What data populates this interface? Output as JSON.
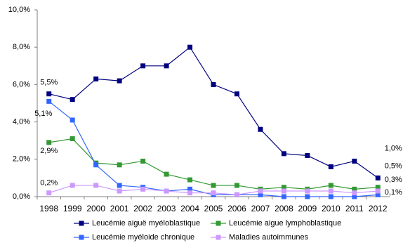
{
  "chart_data": {
    "type": "line",
    "categories": [
      "1998",
      "1999",
      "2000",
      "2001",
      "2002",
      "2003",
      "2004",
      "2005",
      "2006",
      "2007",
      "2008",
      "2009",
      "2010",
      "2011",
      "2012"
    ],
    "ylim": [
      0,
      10
    ],
    "yticks": [
      {
        "value": 0,
        "label": "0,0%"
      },
      {
        "value": 2,
        "label": "2,0%"
      },
      {
        "value": 4,
        "label": "4,0%"
      },
      {
        "value": 6,
        "label": "6,0%"
      },
      {
        "value": 8,
        "label": "8,0%"
      },
      {
        "value": 10,
        "label": "10,0%"
      }
    ],
    "grid": false,
    "legend": "bottom",
    "series": [
      {
        "name": "Leucémie aiguë myéloblastique",
        "color": "#000080",
        "values": [
          5.5,
          5.2,
          6.3,
          6.2,
          7.0,
          7.0,
          8.0,
          6.0,
          5.5,
          3.6,
          2.3,
          2.2,
          1.6,
          1.9,
          1.0
        ],
        "value_labels": [
          "5,5%",
          null,
          null,
          null,
          null,
          null,
          null,
          null,
          null,
          null,
          null,
          null,
          null,
          null,
          "1,0%"
        ]
      },
      {
        "name": "Leucémie aigue lymphoblastique",
        "color": "#339933",
        "values": [
          2.9,
          3.1,
          1.8,
          1.7,
          1.9,
          1.2,
          0.9,
          0.6,
          0.6,
          0.4,
          0.5,
          0.4,
          0.6,
          0.4,
          0.5
        ],
        "value_labels": [
          "2,9%",
          null,
          null,
          null,
          null,
          null,
          null,
          null,
          null,
          null,
          null,
          null,
          null,
          null,
          "0,5%"
        ]
      },
      {
        "name": "Leucémie myéloide chronique",
        "color": "#3366ff",
        "values": [
          5.1,
          4.1,
          1.7,
          0.6,
          0.5,
          0.3,
          0.4,
          0.1,
          0.1,
          0.1,
          0.0,
          0.0,
          0.0,
          0.0,
          0.1
        ],
        "value_labels": [
          "5,1%",
          null,
          null,
          null,
          null,
          null,
          null,
          null,
          null,
          null,
          null,
          null,
          null,
          null,
          "0,1%"
        ]
      },
      {
        "name": "Maladies autoimmunes",
        "color": "#cc99ff",
        "values": [
          0.2,
          0.6,
          0.6,
          0.3,
          0.4,
          0.3,
          0.2,
          0.2,
          0.1,
          0.3,
          0.3,
          0.3,
          0.3,
          0.2,
          0.3
        ],
        "value_labels": [
          "0,2%",
          null,
          null,
          null,
          null,
          null,
          null,
          null,
          null,
          null,
          null,
          null,
          null,
          null,
          "0,3%"
        ]
      }
    ]
  }
}
